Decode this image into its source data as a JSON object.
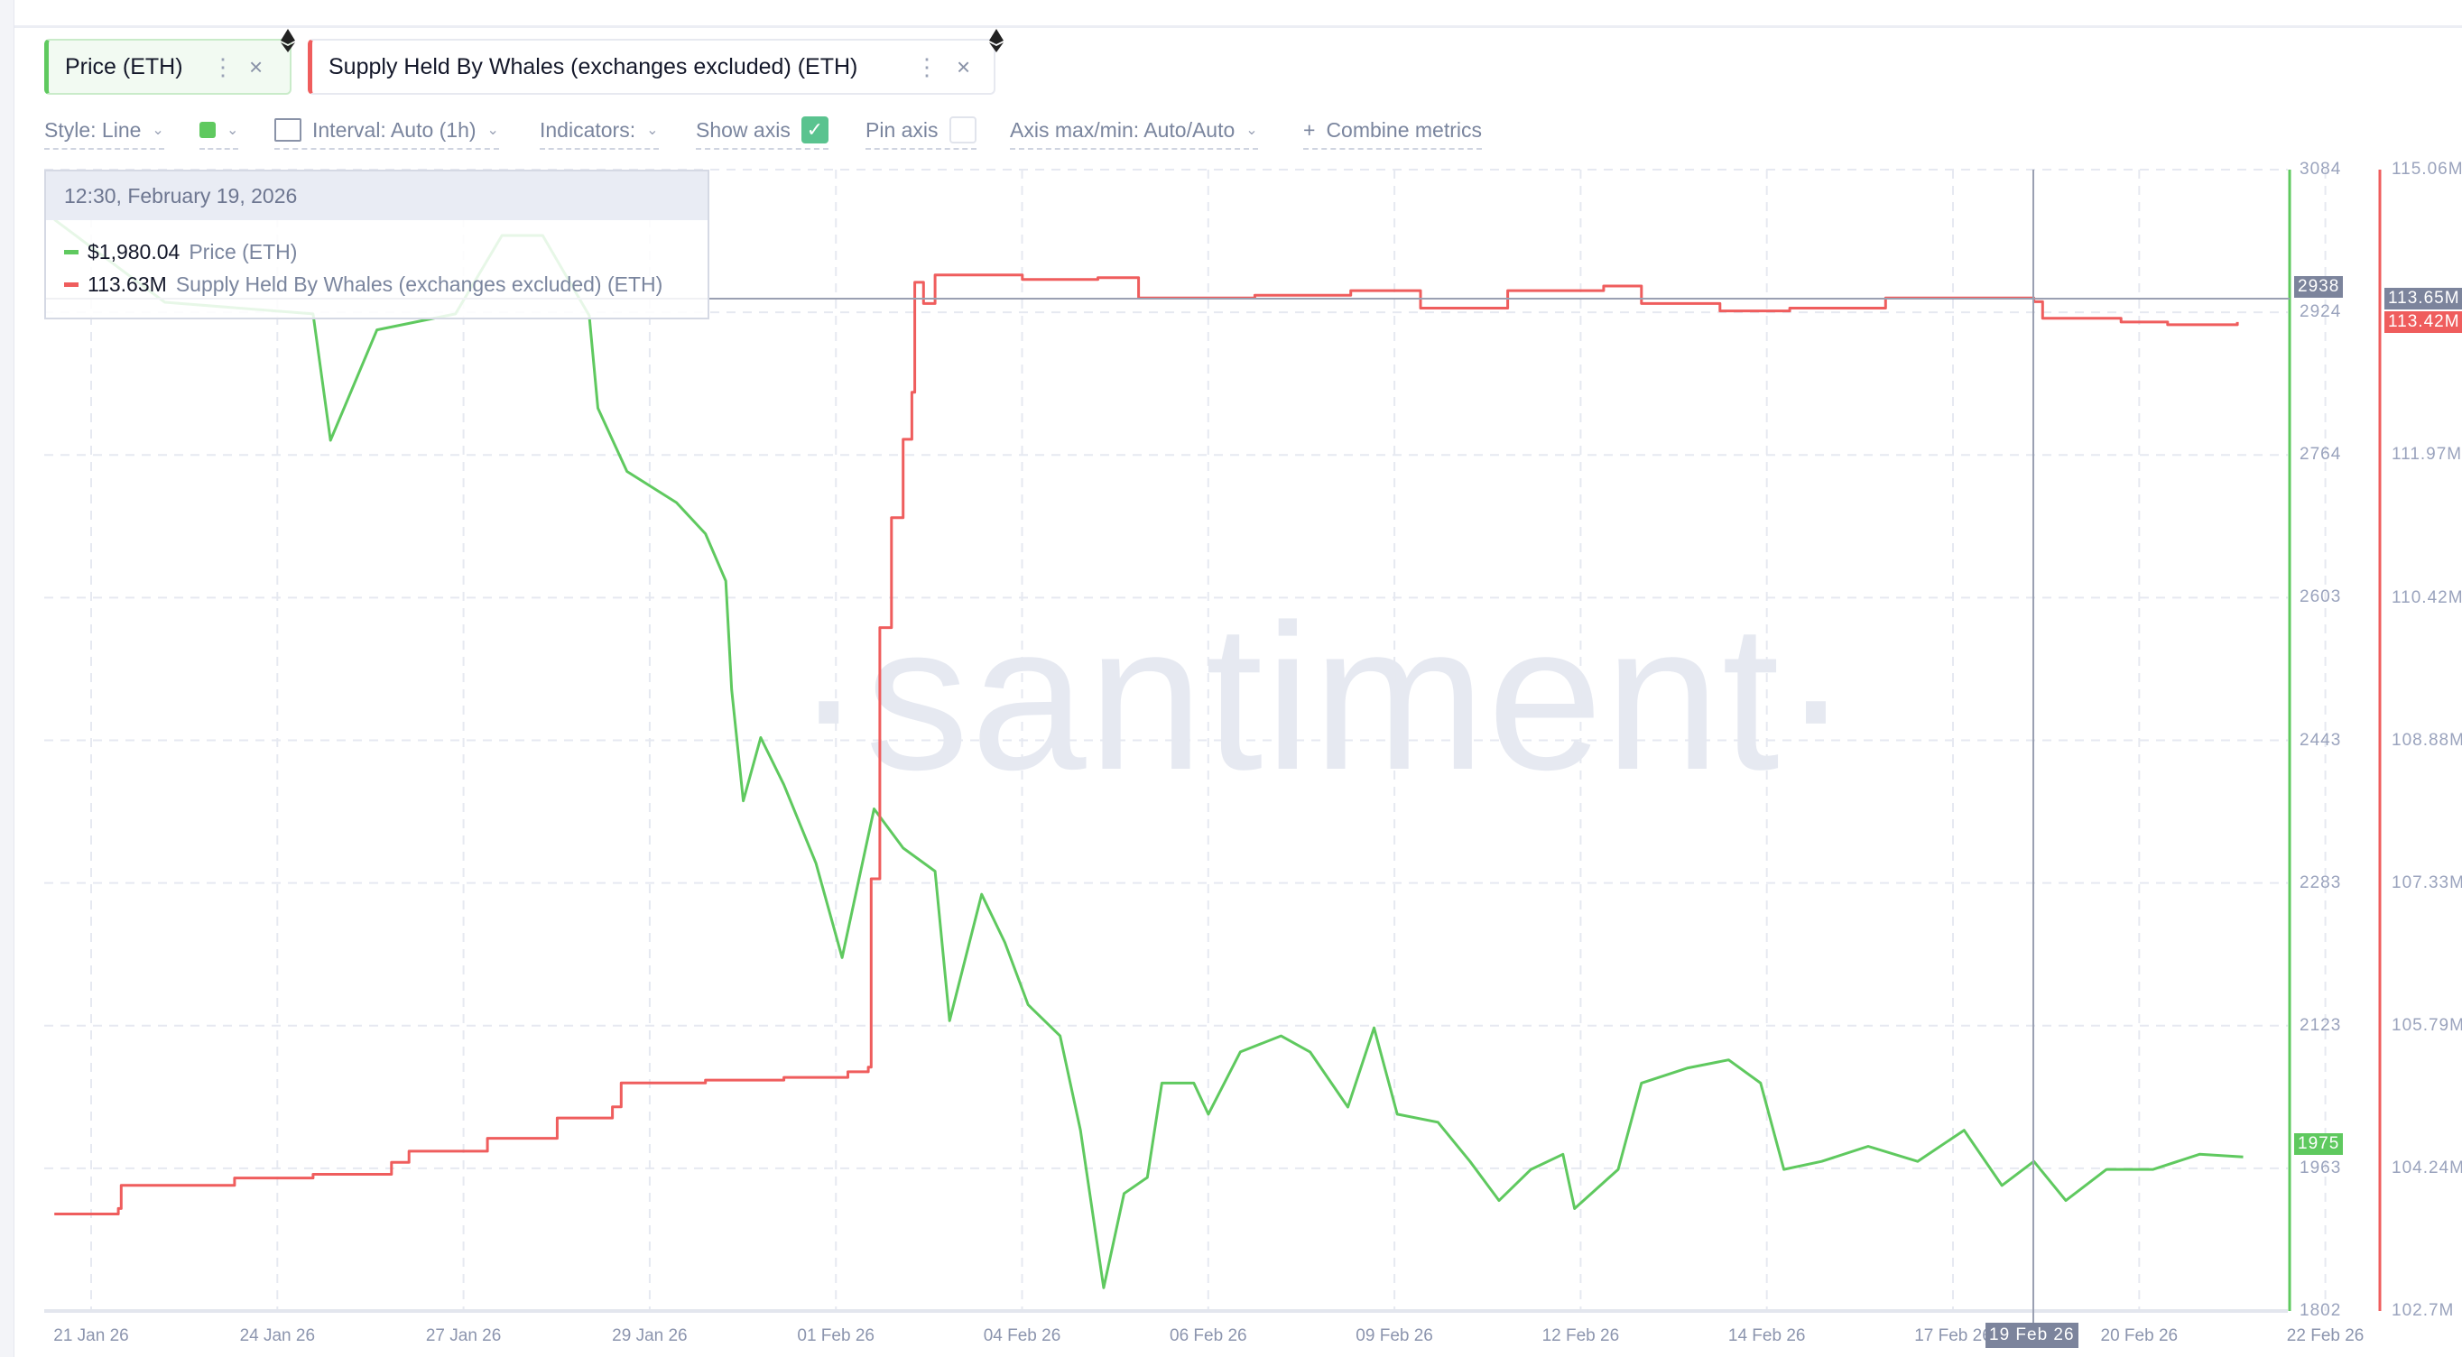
{
  "tabs": [
    {
      "label": "Price (ETH)",
      "color": "#5fc95f",
      "icon": "ethereum-icon"
    },
    {
      "label": "Supply Held By Whales (exchanges excluded) (ETH)",
      "color": "#ef5d5d",
      "icon": "ethereum-icon"
    }
  ],
  "toolbar": {
    "style": "Style: Line",
    "color_swatch": "#5fc95f",
    "interval": "Interval: Auto (1h)",
    "indicators": "Indicators:",
    "show_axis": "Show axis",
    "show_axis_checked": true,
    "pin_axis": "Pin axis",
    "pin_axis_checked": false,
    "axis_maxmin": "Axis max/min: Auto/Auto",
    "combine_plus": "+",
    "combine": "Combine metrics"
  },
  "tooltip": {
    "datetime": "12:30, February 19, 2026",
    "rows": [
      {
        "value": "$1,980.04",
        "label": "Price (ETH)",
        "color": "#5fc95f"
      },
      {
        "value": "113.63M",
        "label": "Supply Held By Whales (exchanges excluded) (ETH)",
        "color": "#ef5d5d"
      }
    ]
  },
  "watermark": "·santiment·",
  "crosshair": {
    "x_label": "19 Feb 26",
    "price_label": "2938",
    "supply_label": "113.65M"
  },
  "last_values": {
    "price": "1975",
    "supply": "113.42M"
  },
  "chart_data": {
    "type": "line",
    "x_ticks": [
      "21 Jan 26",
      "24 Jan 26",
      "27 Jan 26",
      "29 Jan 26",
      "01 Feb 26",
      "04 Feb 26",
      "06 Feb 26",
      "09 Feb 26",
      "12 Feb 26",
      "14 Feb 26",
      "17 Feb 26",
      "20 Feb 26",
      "22 Feb 26"
    ],
    "grid": true,
    "series": [
      {
        "name": "Price (ETH)",
        "color": "#5fc95f",
        "axis": "left",
        "ylim": [
          1802,
          3084
        ],
        "y_ticks": [
          "3084",
          "2924",
          "2764",
          "2603",
          "2443",
          "2283",
          "2123",
          "1963",
          "1802"
        ],
        "points": [
          [
            "2026-01-21T01:00",
            3028
          ],
          [
            "2026-01-22T15:00",
            2935
          ],
          [
            "2026-01-24T18:00",
            2922
          ],
          [
            "2026-01-25T00:00",
            2780
          ],
          [
            "2026-01-25T16:00",
            2904
          ],
          [
            "2026-01-26T19:00",
            2922
          ],
          [
            "2026-01-27T11:00",
            3010
          ],
          [
            "2026-01-28T01:00",
            3010
          ],
          [
            "2026-01-28T17:00",
            2920
          ],
          [
            "2026-01-28T20:00",
            2816
          ],
          [
            "2026-01-29T06:00",
            2745
          ],
          [
            "2026-01-29T23:00",
            2710
          ],
          [
            "2026-01-30T09:00",
            2675
          ],
          [
            "2026-01-30T16:00",
            2622
          ],
          [
            "2026-01-30T18:00",
            2500
          ],
          [
            "2026-01-30T22:00",
            2375
          ],
          [
            "2026-01-31T04:00",
            2446
          ],
          [
            "2026-01-31T12:00",
            2393
          ],
          [
            "2026-01-31T23:00",
            2305
          ],
          [
            "2026-02-01T08:00",
            2199
          ],
          [
            "2026-02-01T19:00",
            2366
          ],
          [
            "2026-02-02T05:00",
            2322
          ],
          [
            "2026-02-02T16:00",
            2296
          ],
          [
            "2026-02-02T21:00",
            2128
          ],
          [
            "2026-02-03T08:00",
            2270
          ],
          [
            "2026-02-03T16:00",
            2216
          ],
          [
            "2026-02-04T00:00",
            2146
          ],
          [
            "2026-02-04T11:00",
            2111
          ],
          [
            "2026-02-04T18:00",
            2005
          ],
          [
            "2026-02-05T02:00",
            1828
          ],
          [
            "2026-02-05T09:00",
            1934
          ],
          [
            "2026-02-05T17:00",
            1952
          ],
          [
            "2026-02-05T22:00",
            2058
          ],
          [
            "2026-02-06T09:00",
            2058
          ],
          [
            "2026-02-06T14:00",
            2023
          ],
          [
            "2026-02-07T01:00",
            2093
          ],
          [
            "2026-02-07T15:00",
            2111
          ],
          [
            "2026-02-08T01:00",
            2093
          ],
          [
            "2026-02-08T14:00",
            2031
          ],
          [
            "2026-02-08T23:00",
            2120
          ],
          [
            "2026-02-09T07:00",
            2023
          ],
          [
            "2026-02-09T21:00",
            2014
          ],
          [
            "2026-02-10T08:00",
            1970
          ],
          [
            "2026-02-10T18:00",
            1926
          ],
          [
            "2026-02-11T05:00",
            1961
          ],
          [
            "2026-02-11T16:00",
            1978
          ],
          [
            "2026-02-11T20:00",
            1917
          ],
          [
            "2026-02-12T11:00",
            1961
          ],
          [
            "2026-02-12T19:00",
            2058
          ],
          [
            "2026-02-13T11:00",
            2075
          ],
          [
            "2026-02-14T01:00",
            2084
          ],
          [
            "2026-02-14T12:00",
            2058
          ],
          [
            "2026-02-14T20:00",
            1961
          ],
          [
            "2026-02-15T09:00",
            1970
          ],
          [
            "2026-02-16T01:00",
            1987
          ],
          [
            "2026-02-16T18:00",
            1970
          ],
          [
            "2026-02-17T10:00",
            2005
          ],
          [
            "2026-02-17T23:00",
            1943
          ],
          [
            "2026-02-18T10:00",
            1970
          ],
          [
            "2026-02-18T21:00",
            1926
          ],
          [
            "2026-02-19T11:00",
            1961
          ],
          [
            "2026-02-20T03:00",
            1961
          ],
          [
            "2026-02-20T19:00",
            1978
          ],
          [
            "2026-02-21T10:00",
            1975
          ]
        ]
      },
      {
        "name": "Supply Held By Whales (exchanges excluded) (ETH)",
        "color": "#ef5d5d",
        "axis": "right",
        "ylim": [
          102.7,
          115.06
        ],
        "unit": "M",
        "y_ticks": [
          "115.06M",
          "111.97M",
          "110.42M",
          "108.88M",
          "107.33M",
          "105.79M",
          "104.24M",
          "102.7M"
        ],
        "points": [
          [
            "2026-01-21T01:00",
            103.75
          ],
          [
            "2026-01-21T23:00",
            103.81
          ],
          [
            "2026-01-22T00:00",
            104.06
          ],
          [
            "2026-01-23T15:00",
            104.14
          ],
          [
            "2026-01-24T18:00",
            104.18
          ],
          [
            "2026-01-25T21:00",
            104.31
          ],
          [
            "2026-01-26T03:00",
            104.43
          ],
          [
            "2026-01-27T06:00",
            104.57
          ],
          [
            "2026-01-28T06:00",
            104.79
          ],
          [
            "2026-01-29T01:00",
            104.91
          ],
          [
            "2026-01-29T04:00",
            105.17
          ],
          [
            "2026-01-30T09:00",
            105.2
          ],
          [
            "2026-01-31T12:00",
            105.23
          ],
          [
            "2026-02-01T10:00",
            105.29
          ],
          [
            "2026-02-01T17:00",
            105.34
          ],
          [
            "2026-02-01T18:00",
            107.38
          ],
          [
            "2026-02-01T21:00",
            110.1
          ],
          [
            "2026-02-02T01:00",
            111.29
          ],
          [
            "2026-02-02T05:00",
            112.14
          ],
          [
            "2026-02-02T08:00",
            112.65
          ],
          [
            "2026-02-02T09:00",
            113.84
          ],
          [
            "2026-02-02T12:00",
            113.61
          ],
          [
            "2026-02-02T16:00",
            113.92
          ],
          [
            "2026-02-03T22:00",
            113.87
          ],
          [
            "2026-02-05T00:00",
            113.89
          ],
          [
            "2026-02-05T14:00",
            113.67
          ],
          [
            "2026-02-07T06:00",
            113.7
          ],
          [
            "2026-02-08T15:00",
            113.75
          ],
          [
            "2026-02-09T15:00",
            113.56
          ],
          [
            "2026-02-10T21:00",
            113.75
          ],
          [
            "2026-02-12T06:00",
            113.8
          ],
          [
            "2026-02-12T19:00",
            113.61
          ],
          [
            "2026-02-13T22:00",
            113.53
          ],
          [
            "2026-02-14T22:00",
            113.56
          ],
          [
            "2026-02-16T07:00",
            113.67
          ],
          [
            "2026-02-17T15:00",
            113.67
          ],
          [
            "2026-02-18T10:00",
            113.63
          ],
          [
            "2026-02-18T13:00",
            113.45
          ],
          [
            "2026-02-19T16:00",
            113.41
          ],
          [
            "2026-02-20T08:00",
            113.38
          ],
          [
            "2026-02-21T08:00",
            113.41
          ]
        ]
      }
    ]
  }
}
